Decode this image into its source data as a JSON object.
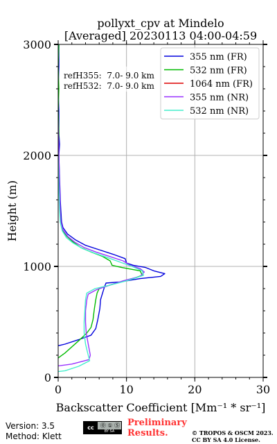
{
  "chart_data": {
    "type": "line",
    "title_line1": "pollyxt_cpv at Mindelo",
    "title_line2": "[Averaged] 20230113 04:00-04:59",
    "xlabel": "Backscatter Coefficient [Mm⁻¹ * sr⁻¹]",
    "ylabel": "Height (m)",
    "xlim": [
      0,
      30
    ],
    "ylim": [
      0,
      3000
    ],
    "xticks": [
      "0",
      "10",
      "20",
      "30"
    ],
    "yticks": [
      "0",
      "1000",
      "2000",
      "3000"
    ],
    "grid": true,
    "legend_position": "top-right",
    "annotations": [
      "refH355:  7.0- 9.0 km",
      "refH532:  7.0- 9.0 km"
    ],
    "series": [
      {
        "name": "355 nm (FR)",
        "color": "#0000dd",
        "points": [
          [
            -1,
            270
          ],
          [
            1,
            300
          ],
          [
            3,
            340
          ],
          [
            4.8,
            380
          ],
          [
            5.5,
            440
          ],
          [
            5.8,
            520
          ],
          [
            6.1,
            620
          ],
          [
            6.2,
            700
          ],
          [
            6.5,
            760
          ],
          [
            6.8,
            820
          ],
          [
            7,
            850
          ],
          [
            9,
            860
          ],
          [
            12,
            890
          ],
          [
            15,
            910
          ],
          [
            15.6,
            935
          ],
          [
            14,
            960
          ],
          [
            12.8,
            990
          ],
          [
            11,
            1010
          ],
          [
            10,
            1030
          ],
          [
            9.8,
            1070
          ],
          [
            8,
            1110
          ],
          [
            6,
            1150
          ],
          [
            4,
            1190
          ],
          [
            2.5,
            1240
          ],
          [
            1.4,
            1290
          ],
          [
            0.7,
            1350
          ],
          [
            0.5,
            1400
          ],
          [
            0.4,
            1500
          ],
          [
            0.3,
            1600
          ],
          [
            0.2,
            1800
          ],
          [
            0.1,
            2000
          ],
          [
            0.2,
            2100
          ],
          [
            0.1,
            2200
          ],
          [
            0.1,
            2300
          ],
          [
            0.1,
            2400
          ],
          [
            0,
            2600
          ],
          [
            0.1,
            2800
          ],
          [
            0.1,
            3000
          ]
        ]
      },
      {
        "name": "532 nm (FR)",
        "color": "#00bb00",
        "points": [
          [
            -1,
            130
          ],
          [
            1,
            220
          ],
          [
            3,
            330
          ],
          [
            4.2,
            400
          ],
          [
            4.8,
            450
          ],
          [
            5.1,
            520
          ],
          [
            5.3,
            620
          ],
          [
            5.5,
            700
          ],
          [
            5.7,
            760
          ],
          [
            6,
            800
          ],
          [
            8,
            840
          ],
          [
            10.5,
            880
          ],
          [
            12.3,
            920
          ],
          [
            12,
            960
          ],
          [
            9.3,
            990
          ],
          [
            7.9,
            1010
          ],
          [
            7.6,
            1050
          ],
          [
            6.5,
            1090
          ],
          [
            4.8,
            1130
          ],
          [
            3.3,
            1170
          ],
          [
            2.2,
            1220
          ],
          [
            1.3,
            1270
          ],
          [
            0.6,
            1330
          ],
          [
            0.4,
            1400
          ],
          [
            0.3,
            1500
          ],
          [
            0.2,
            1600
          ],
          [
            0.1,
            1800
          ],
          [
            0,
            2000
          ],
          [
            0.1,
            2200
          ],
          [
            0,
            2400
          ],
          [
            0.1,
            2600
          ],
          [
            0,
            2800
          ],
          [
            0.1,
            3000
          ]
        ]
      },
      {
        "name": "1064 nm (FR)",
        "color": "#dd0000",
        "points": []
      },
      {
        "name": "355 nm (NR)",
        "color": "#9933ff",
        "points": [
          [
            -1,
            95
          ],
          [
            2,
            120
          ],
          [
            4.5,
            160
          ],
          [
            4.7,
            200
          ],
          [
            4.4,
            300
          ],
          [
            4.1,
            400
          ],
          [
            4,
            500
          ],
          [
            4,
            600
          ],
          [
            4.2,
            700
          ],
          [
            4.4,
            750
          ],
          [
            5.6,
            790
          ],
          [
            7,
            820
          ],
          [
            9.5,
            870
          ],
          [
            12,
            910
          ],
          [
            12.6,
            950
          ],
          [
            12,
            980
          ],
          [
            10.5,
            1010
          ],
          [
            9.5,
            1050
          ],
          [
            7.5,
            1090
          ],
          [
            5.5,
            1130
          ],
          [
            3.8,
            1170
          ],
          [
            2.4,
            1220
          ],
          [
            1.4,
            1270
          ],
          [
            0.7,
            1330
          ],
          [
            0.4,
            1400
          ],
          [
            0.3,
            1500
          ],
          [
            0.2,
            1700
          ],
          [
            0.1,
            2000
          ],
          [
            0,
            2300
          ],
          [
            -0.1,
            2500
          ],
          [
            0,
            2700
          ],
          [
            -0.1,
            2900
          ],
          [
            0,
            3000
          ]
        ]
      },
      {
        "name": "532 nm (NR)",
        "color": "#44eecc",
        "points": [
          [
            -1,
            45
          ],
          [
            1,
            60
          ],
          [
            3,
            100
          ],
          [
            4.6,
            150
          ],
          [
            4.4,
            200
          ],
          [
            4,
            300
          ],
          [
            3.8,
            400
          ],
          [
            3.8,
            500
          ],
          [
            3.9,
            600
          ],
          [
            4,
            700
          ],
          [
            4.2,
            760
          ],
          [
            5.4,
            800
          ],
          [
            7.5,
            830
          ],
          [
            10,
            870
          ],
          [
            12.5,
            920
          ],
          [
            12.3,
            960
          ],
          [
            10.8,
            1000
          ],
          [
            9,
            1040
          ],
          [
            7.2,
            1080
          ],
          [
            5.3,
            1120
          ],
          [
            3.6,
            1160
          ],
          [
            2.2,
            1210
          ],
          [
            1.2,
            1260
          ],
          [
            0.6,
            1320
          ],
          [
            0.3,
            1400
          ],
          [
            0.2,
            1500
          ],
          [
            0.1,
            1700
          ],
          [
            0,
            2000
          ],
          [
            -0.1,
            2300
          ],
          [
            0,
            2500
          ],
          [
            -0.1,
            2700
          ],
          [
            0,
            2900
          ],
          [
            0,
            3000
          ]
        ]
      }
    ]
  },
  "footer": {
    "version": "Version: 3.5",
    "method": "Method: Klett",
    "preliminary_line1": "Preliminary",
    "preliminary_line2": "Results.",
    "copyright_line1": "© TROPOS & OSCM 2023.",
    "copyright_line2": "CC BY SA 4.0 License.",
    "cc_badge_left": "cc",
    "cc_badge_icons": "⓪ ① Ⓢ",
    "cc_badge_bottom": "BY  SA"
  }
}
